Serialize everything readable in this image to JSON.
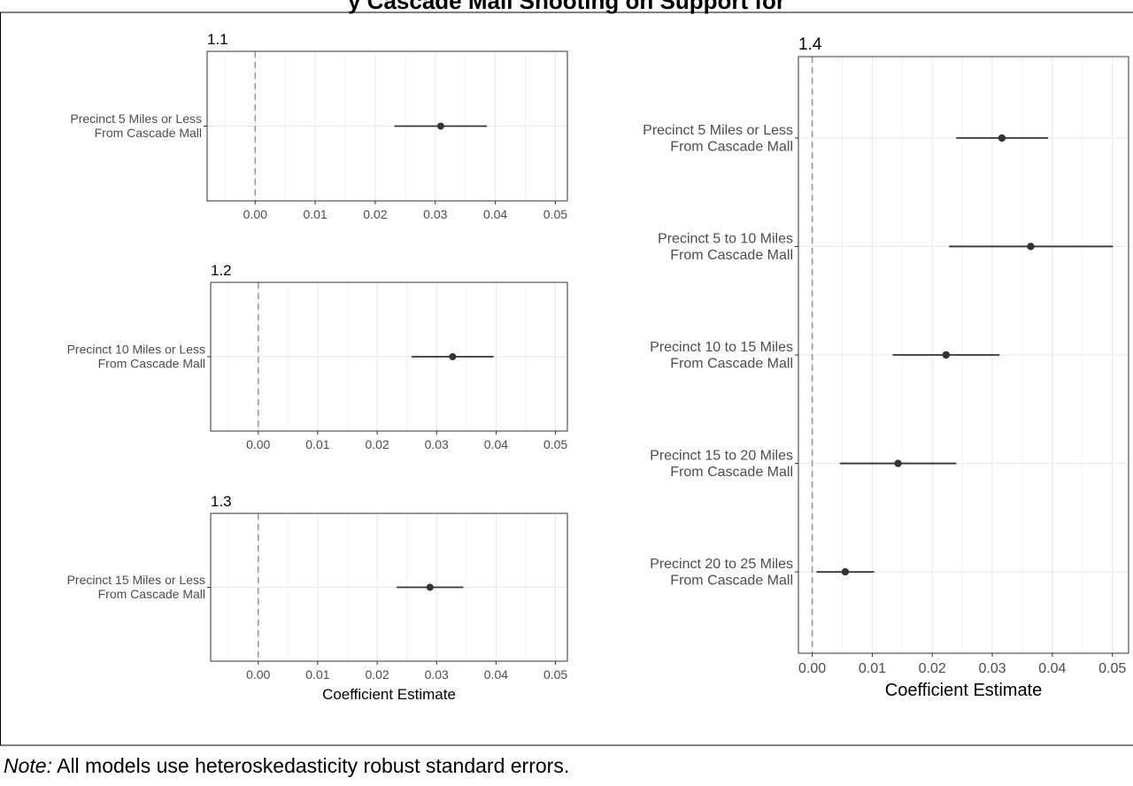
{
  "header": {
    "title": "y Cascade Mall Shooting on Support for"
  },
  "footer": {
    "note_label": "Note:",
    "note_text": " All models use heteroskedasticity robust standard errors."
  },
  "colors": {
    "point": "#333333",
    "zero_line": "#999999",
    "grid_major": "#ebebeb",
    "grid_minor": "#f3f3f3",
    "panel_border": "#333333"
  },
  "chart_data": [
    {
      "type": "coefficient-plot",
      "title": "1.1",
      "xlabel": "",
      "xlim": [
        -0.008,
        0.052
      ],
      "xticks": [
        0.0,
        0.01,
        0.02,
        0.03,
        0.04,
        0.05
      ],
      "xtick_labels": [
        "0.00",
        "0.01",
        "0.02",
        "0.03",
        "0.04",
        "0.05"
      ],
      "points": [
        {
          "label": [
            "Precinct 5 Miles  or Less",
            "From Cascade Mall"
          ],
          "estimate": 0.0309,
          "low": 0.0232,
          "high": 0.0386
        }
      ]
    },
    {
      "type": "coefficient-plot",
      "title": "1.2",
      "xlabel": "",
      "xlim": [
        -0.008,
        0.052
      ],
      "xticks": [
        0.0,
        0.01,
        0.02,
        0.03,
        0.04,
        0.05
      ],
      "xtick_labels": [
        "0.00",
        "0.01",
        "0.02",
        "0.03",
        "0.04",
        "0.05"
      ],
      "points": [
        {
          "label": [
            "Precinct 10 Miles or Less",
            "From Cascade Mall"
          ],
          "estimate": 0.0327,
          "low": 0.0258,
          "high": 0.0396
        }
      ]
    },
    {
      "type": "coefficient-plot",
      "title": "1.3",
      "xlabel": "Coefficient Estimate",
      "xlim": [
        -0.008,
        0.052
      ],
      "xticks": [
        0.0,
        0.01,
        0.02,
        0.03,
        0.04,
        0.05
      ],
      "xtick_labels": [
        "0.00",
        "0.01",
        "0.02",
        "0.03",
        "0.04",
        "0.05"
      ],
      "points": [
        {
          "label": [
            "Precinct 15 Miles or Less",
            "From Cascade Mall"
          ],
          "estimate": 0.0289,
          "low": 0.0233,
          "high": 0.0345
        }
      ]
    },
    {
      "type": "coefficient-plot",
      "title": "1.4",
      "xlabel": "Coefficient Estimate",
      "xlim": [
        -0.0023,
        0.0527
      ],
      "xticks": [
        0.0,
        0.01,
        0.02,
        0.03,
        0.04,
        0.05
      ],
      "xtick_labels": [
        "0.00",
        "0.01",
        "0.02",
        "0.03",
        "0.04",
        "0.05"
      ],
      "points": [
        {
          "label": [
            "Precinct 5 Miles or Less",
            "From Cascade Mall"
          ],
          "estimate": 0.0316,
          "low": 0.024,
          "high": 0.0393
        },
        {
          "label": [
            "Precinct 5 to 10 Miles",
            "From Cascade Mall"
          ],
          "estimate": 0.0364,
          "low": 0.0228,
          "high": 0.0501
        },
        {
          "label": [
            "Precinct 10 to 15 Miles",
            "From Cascade Mall"
          ],
          "estimate": 0.0223,
          "low": 0.0134,
          "high": 0.0312
        },
        {
          "label": [
            "Precinct 15 to 20 Miles",
            "From Cascade Mall"
          ],
          "estimate": 0.0143,
          "low": 0.0046,
          "high": 0.024
        },
        {
          "label": [
            "Precinct 20 to 25 Miles",
            "From Cascade Mall"
          ],
          "estimate": 0.0055,
          "low": 0.0007,
          "high": 0.0103
        }
      ]
    }
  ]
}
